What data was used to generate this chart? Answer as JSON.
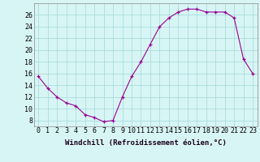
{
  "x": [
    0,
    1,
    2,
    3,
    4,
    5,
    6,
    7,
    8,
    9,
    10,
    11,
    12,
    13,
    14,
    15,
    16,
    17,
    18,
    19,
    20,
    21,
    22,
    23
  ],
  "y": [
    15.5,
    13.5,
    12.0,
    11.0,
    10.5,
    9.0,
    8.5,
    7.8,
    8.0,
    12.0,
    15.5,
    18.0,
    21.0,
    24.0,
    25.5,
    26.5,
    27.0,
    27.0,
    26.5,
    26.5,
    26.5,
    25.5,
    18.5,
    16.0
  ],
  "line_color": "#990099",
  "bg_color": "#d8f5f5",
  "grid_color": "#aadddd",
  "xlabel": "Windchill (Refroidissement éolien,°C)",
  "xlabel_fontsize": 6.5,
  "tick_fontsize": 6,
  "ylim": [
    7,
    28
  ],
  "yticks": [
    8,
    10,
    12,
    14,
    16,
    18,
    20,
    22,
    24,
    26
  ],
  "xlim": [
    -0.5,
    23.5
  ],
  "xticks": [
    0,
    1,
    2,
    3,
    4,
    5,
    6,
    7,
    8,
    9,
    10,
    11,
    12,
    13,
    14,
    15,
    16,
    17,
    18,
    19,
    20,
    21,
    22,
    23
  ]
}
